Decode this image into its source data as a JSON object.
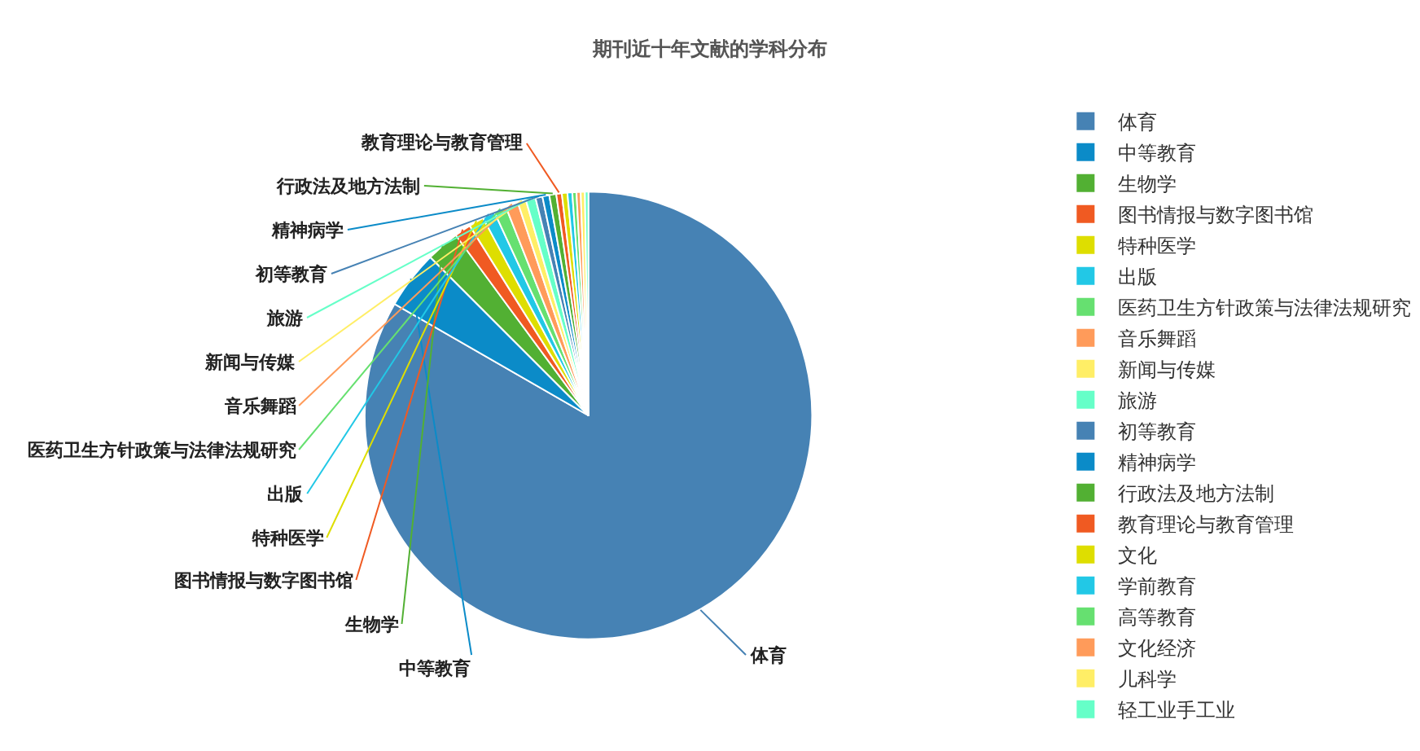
{
  "chart_data": {
    "type": "pie",
    "title": "期刊近十年文献的学科分布",
    "categories": [
      "体育",
      "中等教育",
      "生物学",
      "图书情报与数字图书馆",
      "特种医学",
      "出版",
      "医药卫生方针政策与法律法规研究",
      "音乐舞蹈",
      "新闻与传媒",
      "旅游",
      "初等教育",
      "精神病学",
      "行政法及地方法制",
      "教育理论与教育管理",
      "文化",
      "学前教育",
      "高等教育",
      "文化经济",
      "儿科学",
      "轻工业手工业"
    ],
    "values": [
      83.3,
      4.2,
      2.4,
      1.2,
      1.1,
      0.9,
      0.9,
      0.9,
      0.6,
      0.7,
      0.5,
      0.5,
      0.5,
      0.4,
      0.4,
      0.35,
      0.3,
      0.3,
      0.3,
      0.25
    ],
    "colors": [
      "#4682b4",
      "#0b8bc8",
      "#52b033",
      "#f05a22",
      "#dede00",
      "#22c8e6",
      "#66e070",
      "#ff9b5a",
      "#ffee66",
      "#66ffc8",
      "#4682b4",
      "#0b8bc8",
      "#52b033",
      "#f05a22",
      "#dede00",
      "#22c8e6",
      "#66e070",
      "#ff9b5a",
      "#ffee66",
      "#66ffc8"
    ],
    "value_labels": [
      "体育",
      "中等教育",
      "生物学",
      "图书情报与数字图书馆",
      "特种医学",
      "出版",
      "医药卫生方针政策与法律法规研究",
      "音乐舞蹈",
      "新闻与传媒",
      "旅游",
      "初等教育",
      "精神病学",
      "行政法及地方法制",
      "教育理论与教育管理",
      null,
      null,
      null,
      null,
      null,
      null
    ],
    "legend": "right"
  }
}
